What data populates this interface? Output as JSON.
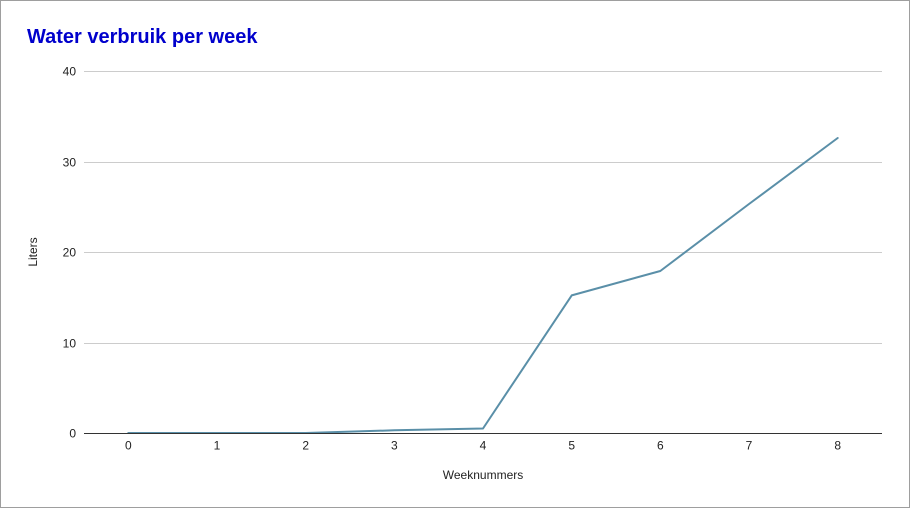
{
  "chart_data": {
    "type": "line",
    "title": "Water verbruik per week",
    "title_color": "#0000cc",
    "xlabel": "Weeknummers",
    "ylabel": "Liters",
    "x": [
      0,
      1,
      2,
      3,
      4,
      5,
      6,
      7,
      8
    ],
    "x_ticks": [
      "0",
      "1",
      "2",
      "3",
      "4",
      "5",
      "6",
      "7",
      "8"
    ],
    "xlim": [
      -0.5,
      8.5
    ],
    "y_ticks": [
      "0",
      "10",
      "20",
      "30",
      "40"
    ],
    "ylim": [
      0,
      40
    ],
    "grid": true,
    "legend": "none",
    "series": [
      {
        "color": "#5a8fa8",
        "values": [
          0,
          0,
          0,
          0.3,
          0.5,
          15.2,
          17.9,
          25.3,
          32.6
        ]
      }
    ]
  }
}
